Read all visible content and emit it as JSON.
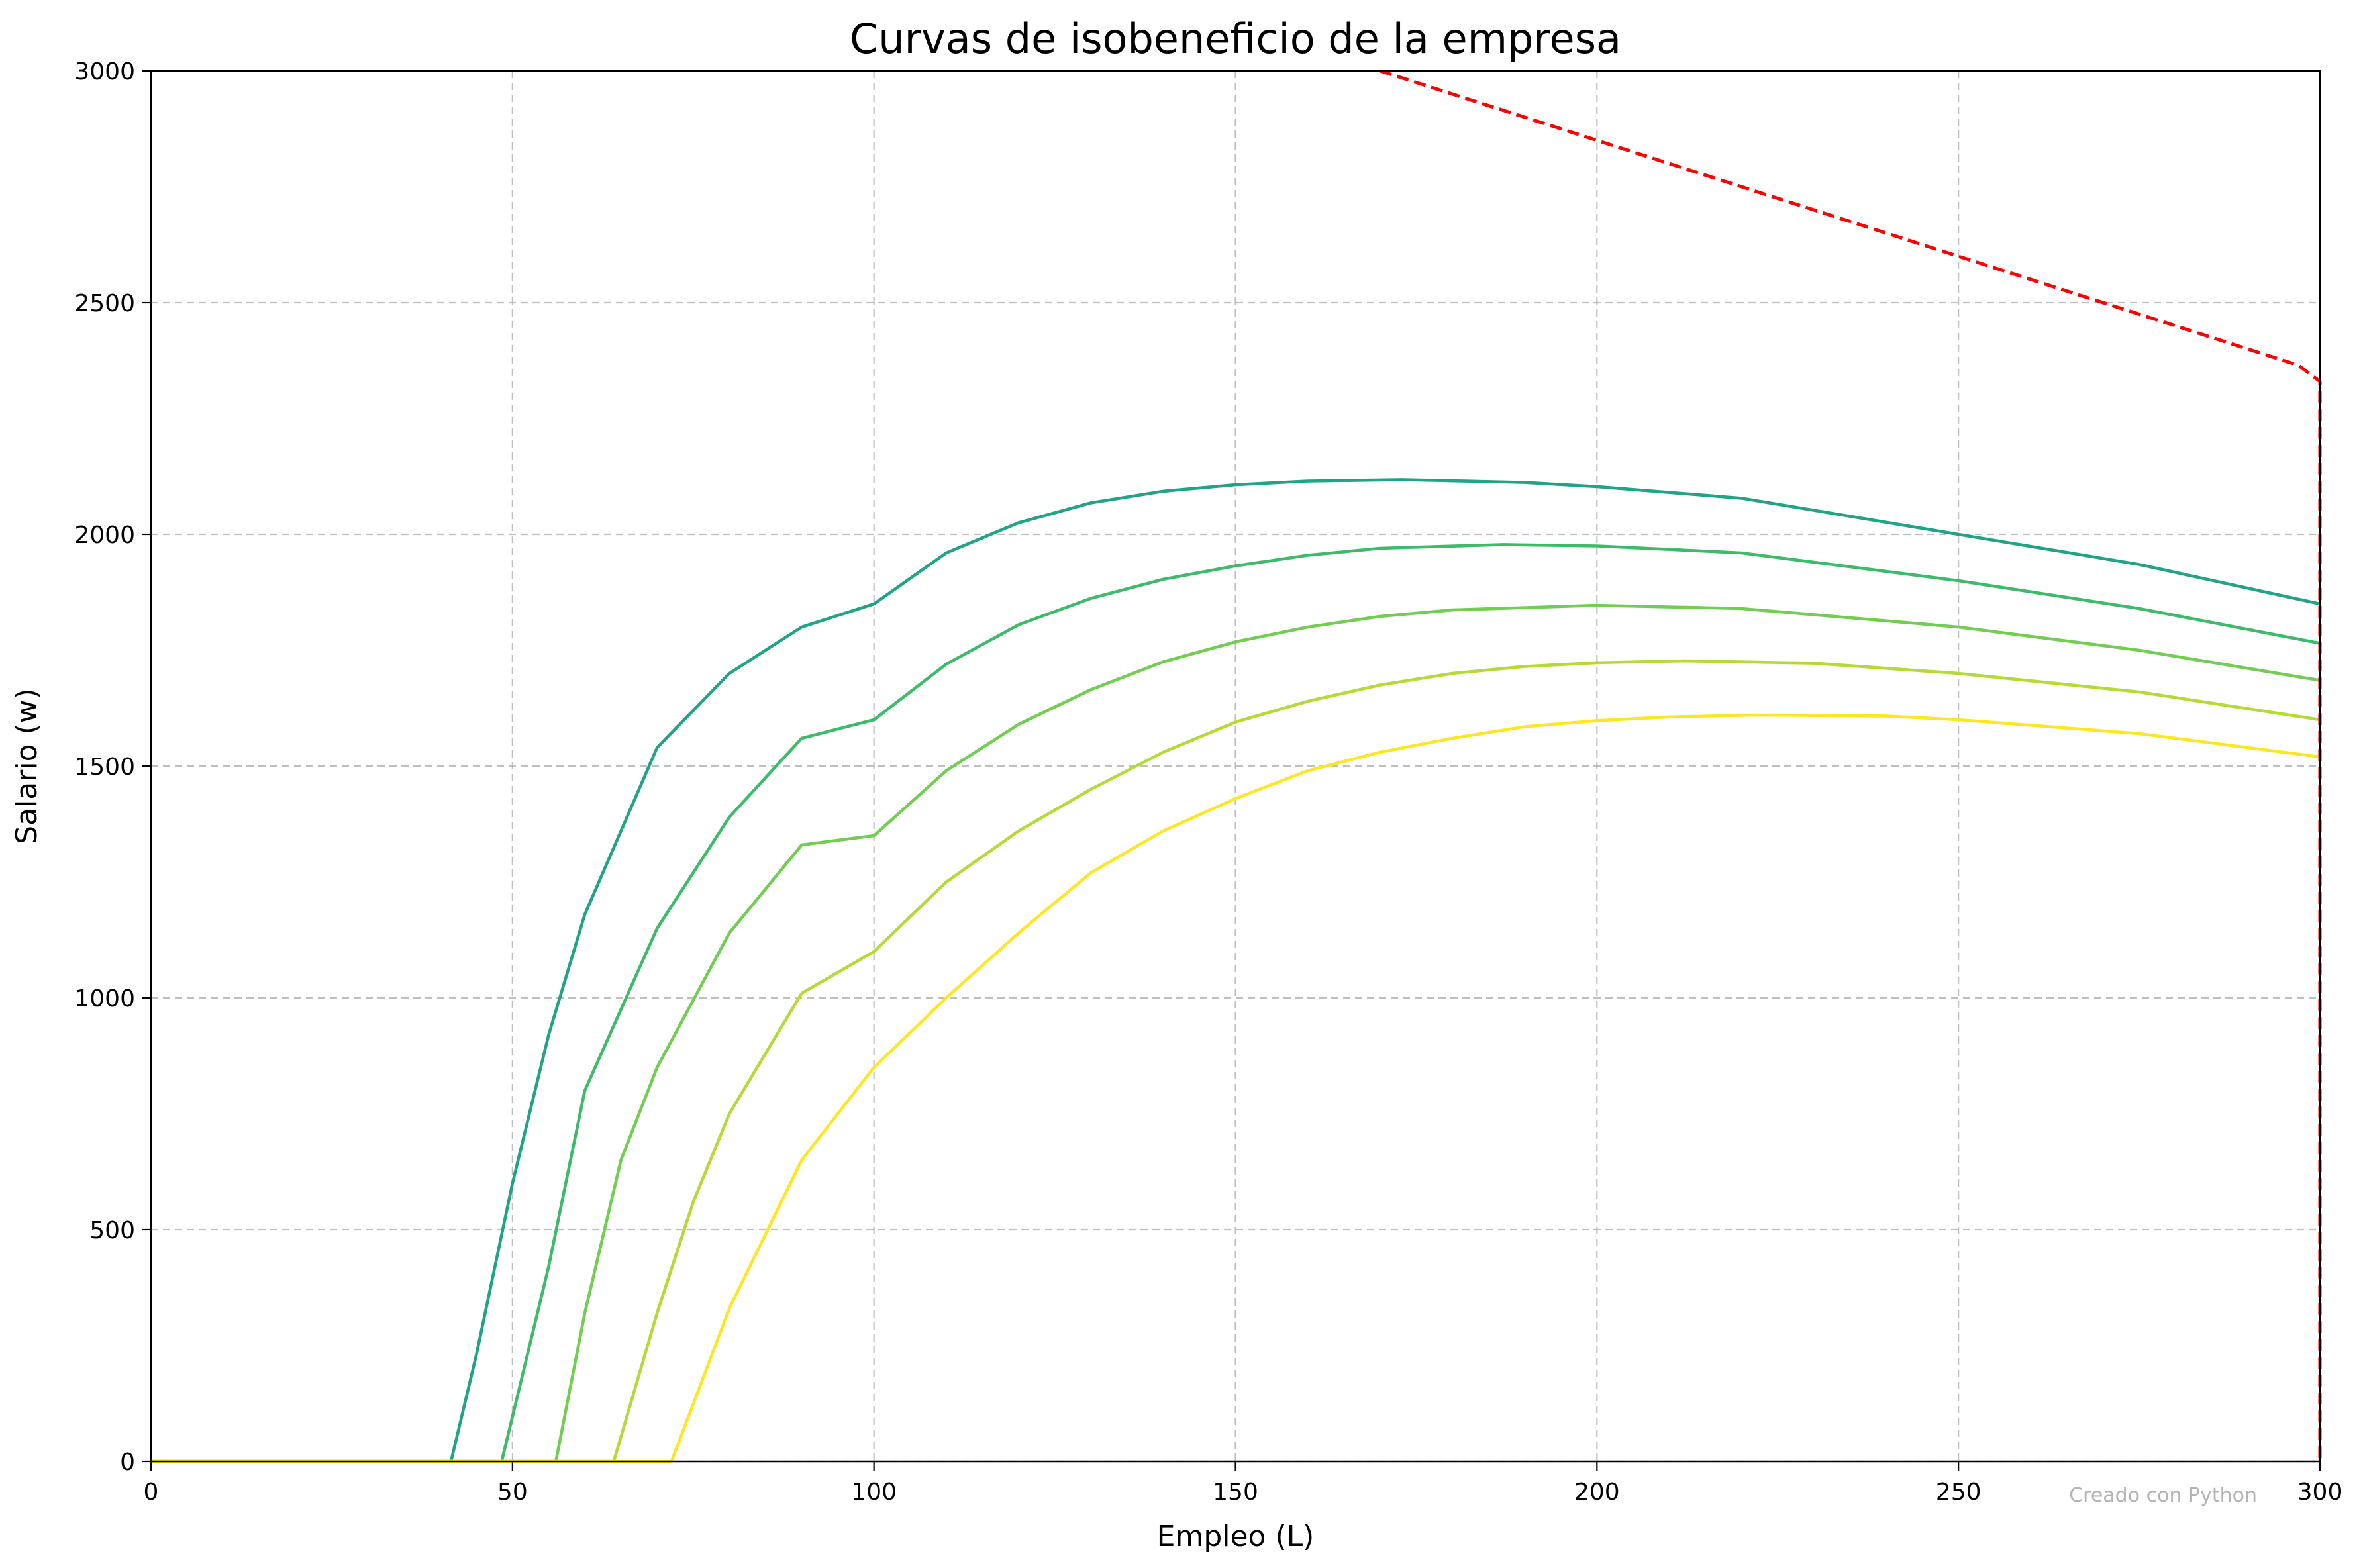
{
  "chart_data": {
    "type": "line",
    "title": "Curvas de isobeneficio de la empresa",
    "xlabel": "Empleo (L)",
    "ylabel": "Salario (w)",
    "xlim": [
      0,
      300
    ],
    "ylim": [
      0,
      3000
    ],
    "xticks": [
      "0",
      "50",
      "100",
      "150",
      "200",
      "250",
      "300"
    ],
    "yticks": [
      "0",
      "500",
      "1000",
      "1500",
      "2000",
      "2500",
      "3000"
    ],
    "grid": true,
    "watermark": "Creado con Python",
    "series": [
      {
        "color": "#21a386",
        "dash": "solid",
        "x": [
          0,
          41.5,
          45,
          50,
          55,
          60,
          70,
          80,
          90,
          100,
          110,
          120,
          130,
          140,
          150,
          160,
          173,
          190,
          200,
          220,
          250,
          275,
          300
        ],
        "y": [
          0,
          0,
          230,
          600,
          920,
          1180,
          1540,
          1700,
          1800,
          1850,
          1960,
          2025,
          2068,
          2093,
          2107,
          2115,
          2118,
          2112,
          2103,
          2078,
          2000,
          1935,
          1850
        ]
      },
      {
        "color": "#3dbb6a",
        "dash": "solid",
        "x": [
          0,
          48.5,
          55,
          60,
          70,
          80,
          90,
          100,
          110,
          120,
          130,
          140,
          150,
          160,
          170,
          187,
          200,
          220,
          250,
          275,
          300
        ],
        "y": [
          0,
          0,
          420,
          800,
          1150,
          1390,
          1560,
          1600,
          1720,
          1805,
          1862,
          1903,
          1932,
          1955,
          1970,
          1978,
          1975,
          1960,
          1900,
          1840,
          1765
        ]
      },
      {
        "color": "#72cd52",
        "dash": "solid",
        "x": [
          0,
          56,
          60,
          65,
          70,
          80,
          90,
          100,
          110,
          120,
          130,
          140,
          150,
          160,
          170,
          180,
          200,
          220,
          250,
          275,
          300
        ],
        "y": [
          0,
          0,
          320,
          650,
          850,
          1140,
          1330,
          1350,
          1490,
          1590,
          1665,
          1725,
          1768,
          1800,
          1823,
          1837,
          1847,
          1840,
          1800,
          1750,
          1685
        ]
      },
      {
        "color": "#b5d935",
        "dash": "solid",
        "x": [
          0,
          64,
          70,
          75,
          80,
          90,
          100,
          110,
          120,
          130,
          140,
          150,
          160,
          170,
          180,
          190,
          200,
          212,
          230,
          250,
          275,
          300
        ],
        "y": [
          0,
          0,
          320,
          560,
          750,
          1010,
          1100,
          1250,
          1360,
          1450,
          1530,
          1595,
          1640,
          1675,
          1700,
          1715,
          1723,
          1727,
          1722,
          1700,
          1660,
          1600
        ]
      },
      {
        "color": "#fde725",
        "dash": "solid",
        "x": [
          0,
          72,
          80,
          90,
          100,
          110,
          120,
          130,
          140,
          150,
          160,
          170,
          180,
          190,
          200,
          210,
          222,
          240,
          250,
          275,
          300
        ],
        "y": [
          0,
          0,
          330,
          650,
          850,
          1000,
          1140,
          1270,
          1360,
          1430,
          1490,
          1530,
          1560,
          1585,
          1598,
          1606,
          1610,
          1608,
          1600,
          1570,
          1520
        ]
      },
      {
        "color": "#ff0000",
        "dash": "dashed",
        "x": [
          170,
          180,
          190,
          200,
          210,
          220,
          230,
          240,
          250,
          260,
          270,
          280,
          290,
          297,
          300,
          300
        ],
        "y": [
          3000,
          2950,
          2900,
          2850,
          2800,
          2750,
          2700,
          2650,
          2600,
          2550,
          2500,
          2450,
          2400,
          2365,
          2330,
          0
        ]
      }
    ]
  }
}
